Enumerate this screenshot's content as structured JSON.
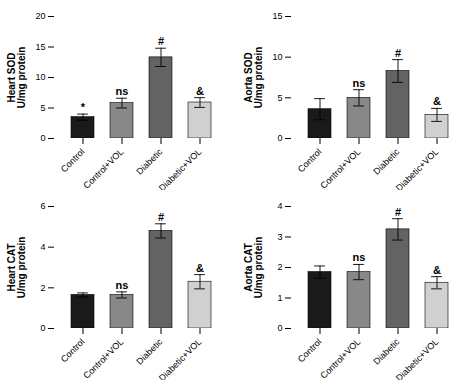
{
  "chart_data": [
    {
      "type": "bar",
      "ylabel": "Heart SOD\nU/mg protein",
      "categories": [
        "Control",
        "Control+VOL",
        "Diabetic",
        "Diabetic+VOL"
      ],
      "values": [
        3.5,
        5.8,
        13.3,
        5.9
      ],
      "errors": [
        0.5,
        0.8,
        1.5,
        0.8
      ],
      "colors": [
        "#1a1a1a",
        "#888888",
        "#636363",
        "#d0d0d0"
      ],
      "annotations": [
        "*",
        "ns",
        "#",
        "&"
      ],
      "ylim": [
        0,
        20
      ],
      "yticks": [
        0,
        5,
        10,
        15,
        20
      ],
      "grid": false
    },
    {
      "type": "bar",
      "ylabel": "Aorta SOD\nU/mg protein",
      "categories": [
        "Control",
        "Control+VOL",
        "Diabetic",
        "Diabetic+VOL"
      ],
      "values": [
        3.6,
        5.0,
        8.3,
        2.9
      ],
      "errors": [
        1.3,
        1.0,
        1.4,
        0.8
      ],
      "colors": [
        "#1a1a1a",
        "#888888",
        "#636363",
        "#d0d0d0"
      ],
      "annotations": [
        null,
        "ns",
        "#",
        "&"
      ],
      "ylim": [
        0,
        15
      ],
      "yticks": [
        0,
        5,
        10,
        15
      ],
      "grid": false
    },
    {
      "type": "bar",
      "ylabel": "Heart CAT\nU/mg protein",
      "categories": [
        "Control",
        "Control+VOL",
        "Diabetic",
        "Diabetic+VOL"
      ],
      "values": [
        1.65,
        1.65,
        4.8,
        2.3
      ],
      "errors": [
        0.1,
        0.15,
        0.35,
        0.35
      ],
      "colors": [
        "#1a1a1a",
        "#888888",
        "#636363",
        "#d0d0d0"
      ],
      "annotations": [
        null,
        "ns",
        "#",
        "&"
      ],
      "ylim": [
        0,
        6
      ],
      "yticks": [
        0,
        2,
        4,
        6
      ],
      "grid": false
    },
    {
      "type": "bar",
      "ylabel": "Aorta CAT\nU/mg protein",
      "categories": [
        "Control",
        "Control+VOL",
        "Diabetic",
        "Diabetic+VOL"
      ],
      "values": [
        1.85,
        1.85,
        3.25,
        1.5
      ],
      "errors": [
        0.2,
        0.25,
        0.35,
        0.2
      ],
      "colors": [
        "#1a1a1a",
        "#888888",
        "#636363",
        "#d0d0d0"
      ],
      "annotations": [
        null,
        "ns",
        "#",
        "&"
      ],
      "ylim": [
        0,
        4
      ],
      "yticks": [
        0,
        1,
        2,
        3,
        4
      ],
      "grid": false
    }
  ]
}
